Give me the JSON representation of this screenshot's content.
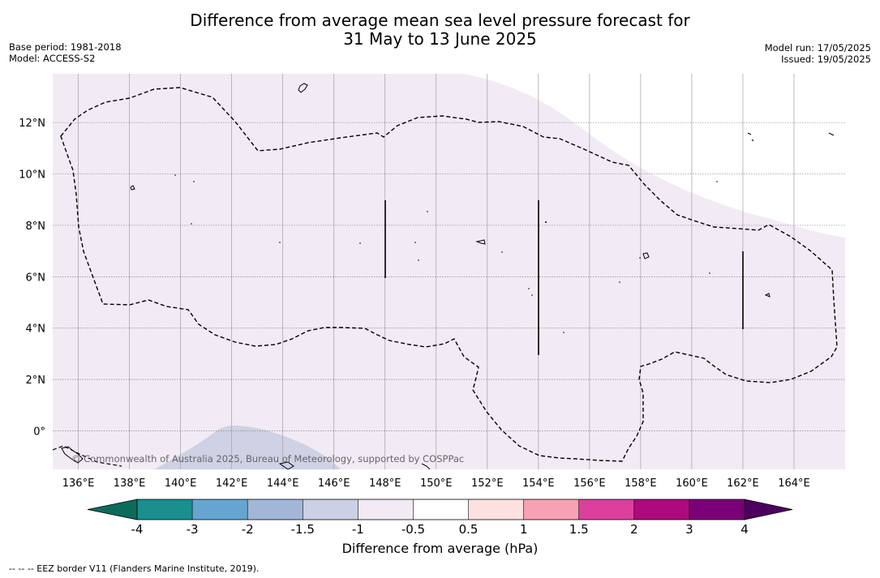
{
  "title": {
    "line1": "Difference from average mean sea level pressure forecast for",
    "line2": "31 May to 13 June 2025"
  },
  "meta": {
    "base_period": "Base period: 1981-2018",
    "model": "Model: ACCESS-S2",
    "model_run": "Model run: 17/05/2025",
    "issued": "Issued: 19/05/2025"
  },
  "map": {
    "lon_ticks": [
      "136°E",
      "138°E",
      "140°E",
      "142°E",
      "144°E",
      "146°E",
      "148°E",
      "150°E",
      "152°E",
      "154°E",
      "156°E",
      "158°E",
      "160°E",
      "162°E",
      "164°E"
    ],
    "lat_ticks": [
      "12°N",
      "10°N",
      "8°N",
      "6°N",
      "4°N",
      "2°N",
      "0°"
    ],
    "attribution": "© Commonwealth of Australia 2025, Bureau of Meteorology, supported by COSPPac",
    "lon_range": [
      135,
      166
    ],
    "lat_range": [
      -1.5,
      13.9
    ],
    "field_colors": {
      "light_purple": "#f2ebf5",
      "blue_gray": "#cfd1e5"
    }
  },
  "colorbar": {
    "tick_labels": [
      "-4",
      "-3",
      "-2",
      "-1.5",
      "-1",
      "-0.5",
      "0.5",
      "1",
      "1.5",
      "2",
      "3",
      "4"
    ],
    "colors": [
      "#1b8e8e",
      "#66a5d2",
      "#a2b7d8",
      "#cdd0e4",
      "#f2ebf5",
      "#ffffff",
      "#fde1e1",
      "#f8a1b5",
      "#dc3f9c",
      "#ae0a7d",
      "#7b0077"
    ],
    "low_extend_color": "#0b6b5d",
    "high_extend_color": "#4d005e",
    "label": "Difference from average (hPa)"
  },
  "footnote": "--  --  -- EEZ border V11 (Flanders Marine Institute, 2019)."
}
